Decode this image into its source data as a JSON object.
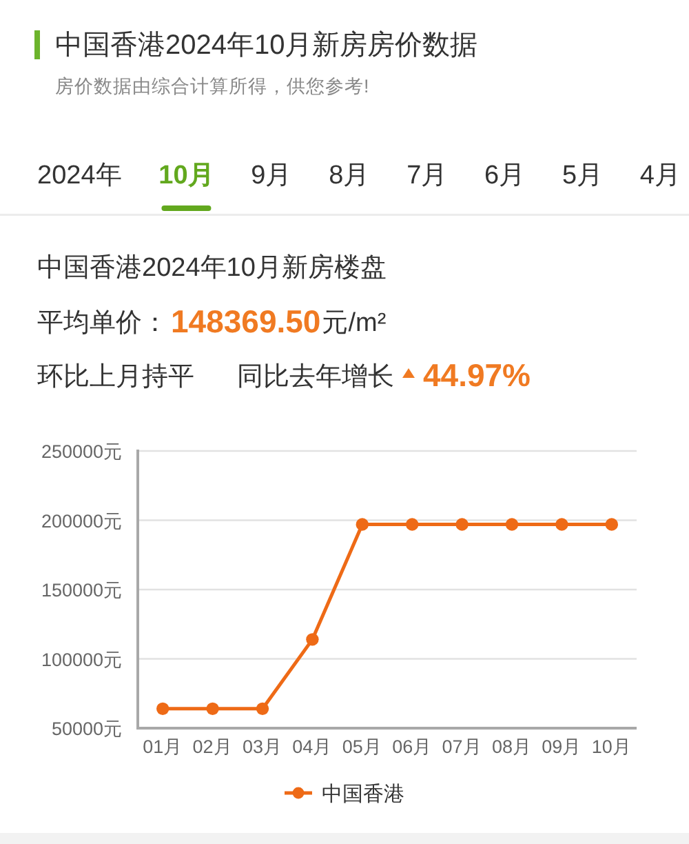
{
  "chart_data": {
    "type": "line",
    "title": "中国香港2024年10月新房房价数据",
    "subtitle": "房价数据由综合计算所得，供您参考!",
    "annotations": [
      "2024年",
      "10月",
      "9月",
      "8月",
      "7月",
      "6月",
      "5月",
      "4月",
      "中国香港2024年10月新房楼盘",
      "平均单价：",
      "148369.50",
      "元/m²",
      "环比上月持平",
      "同比去年增长",
      "44.97%"
    ],
    "categories": [
      "01月",
      "02月",
      "03月",
      "04月",
      "05月",
      "06月",
      "07月",
      "08月",
      "09月",
      "10月"
    ],
    "series": [
      {
        "name": "中国香港",
        "color": "#ee6a16",
        "values": [
          64000,
          64000,
          64000,
          114000,
          197000,
          197000,
          197000,
          197000,
          197000,
          197000
        ]
      }
    ],
    "ylim": [
      50000,
      250000
    ],
    "yticks": [
      {
        "value": 50000,
        "label": "50000元"
      },
      {
        "value": 100000,
        "label": "100000元"
      },
      {
        "value": 150000,
        "label": "150000元"
      },
      {
        "value": 200000,
        "label": "200000元"
      },
      {
        "value": 250000,
        "label": "250000元"
      }
    ],
    "grid": "y",
    "legend": "bottom",
    "marker": "circle",
    "line_style": "solid"
  }
}
